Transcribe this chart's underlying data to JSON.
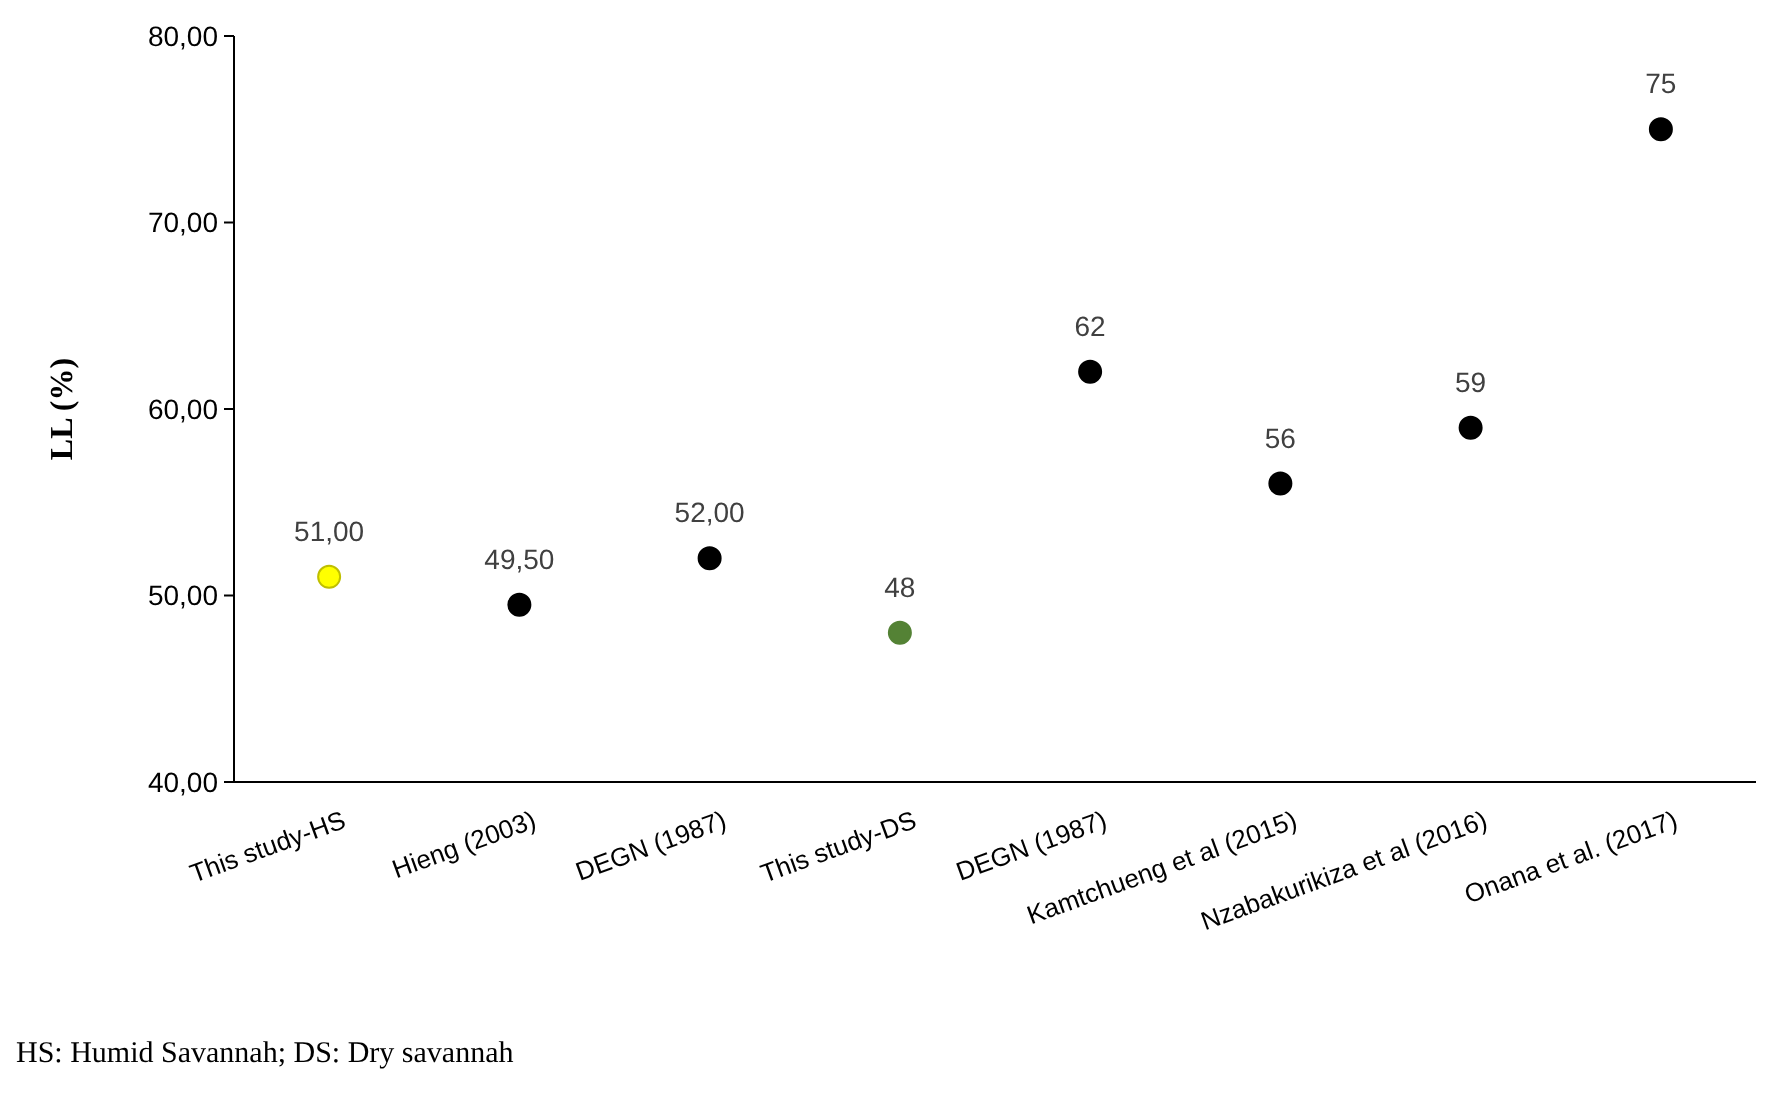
{
  "chart_data": {
    "type": "scatter",
    "ylabel": "LL (%)",
    "categories": [
      "This study-HS",
      "Hieng (2003)",
      "DEGN (1987)",
      "This study-DS",
      "DEGN (1987)",
      "Kamtchueng et al (2015)",
      "Nzabakurikiza et al (2016)",
      "Onana et al. (2017)"
    ],
    "values": [
      51,
      49.5,
      52,
      48,
      62,
      56,
      59,
      75
    ],
    "colors": [
      "#ffff00",
      "#000000",
      "#000000",
      "#548235",
      "#000000",
      "#000000",
      "#000000",
      "#000000"
    ],
    "value_labels": [
      "51,00",
      "49,50",
      "52,00",
      "48",
      "62",
      "56",
      "59",
      "75"
    ],
    "ylim": [
      40,
      80
    ],
    "yticks": [
      {
        "value": 40,
        "label": "40,00"
      },
      {
        "value": 50,
        "label": "50,00"
      },
      {
        "value": 60,
        "label": "60,00"
      },
      {
        "value": 70,
        "label": "70,00"
      },
      {
        "value": 80,
        "label": "80,00"
      }
    ],
    "grid": false,
    "marker": "circle",
    "annotations": [
      "HS: Humid Savannah;  DS: Dry savannah"
    ]
  }
}
